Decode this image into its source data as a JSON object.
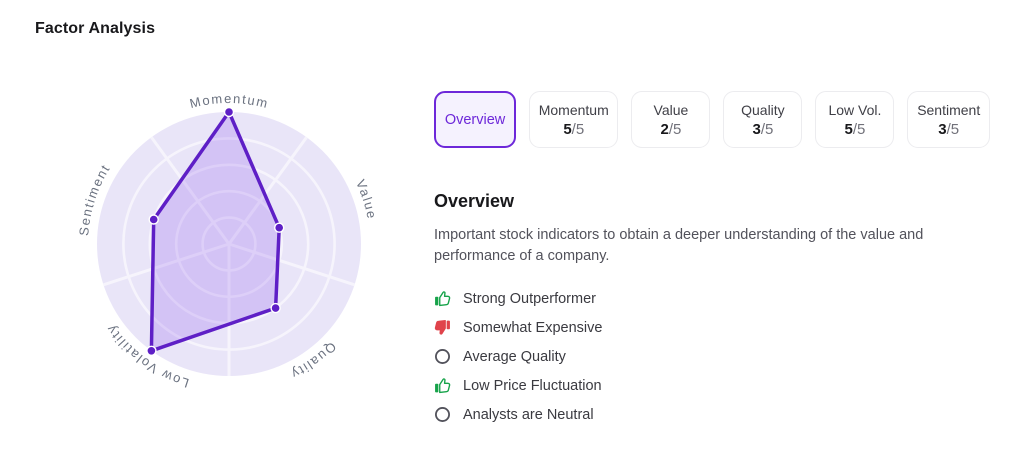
{
  "page_title": "Factor Analysis",
  "accent_color": "#6d28d9",
  "tabs": {
    "overview": {
      "label": "Overview"
    },
    "factors": [
      {
        "label": "Momentum",
        "score": "5",
        "denominator": "/5"
      },
      {
        "label": "Value",
        "score": "2",
        "denominator": "/5"
      },
      {
        "label": "Quality",
        "score": "3",
        "denominator": "/5"
      },
      {
        "label": "Low Vol.",
        "score": "5",
        "denominator": "/5"
      },
      {
        "label": "Sentiment",
        "score": "3",
        "denominator": "/5"
      }
    ]
  },
  "overview": {
    "heading": "Overview",
    "description": "Important stock indicators to obtain a deeper understanding of the value and performance of a company.",
    "indicators": [
      {
        "icon": "thumbs-up-icon",
        "sentiment": "positive",
        "label": "Strong Outperformer",
        "color": "#17a34a"
      },
      {
        "icon": "thumbs-down-icon",
        "sentiment": "negative",
        "label": "Somewhat Expensive",
        "color": "#e0434b"
      },
      {
        "icon": "neutral-circle-icon",
        "sentiment": "neutral",
        "label": "Average Quality",
        "color": "#52525b"
      },
      {
        "icon": "thumbs-up-icon",
        "sentiment": "positive",
        "label": "Low Price Fluctuation",
        "color": "#17a34a"
      },
      {
        "icon": "neutral-circle-icon",
        "sentiment": "neutral",
        "label": "Analysts are Neutral",
        "color": "#52525b"
      }
    ]
  },
  "chart_data": {
    "type": "radar",
    "title": "Factor Analysis radar",
    "categories": [
      "Momentum",
      "Value",
      "Quality",
      "Low Volatility",
      "Sentiment"
    ],
    "values": [
      5,
      2,
      3,
      5,
      3
    ],
    "scale_max": 5,
    "rings": 5,
    "grid": true,
    "legend_position": "none",
    "colors": {
      "disc": "#e9e5f8",
      "grid": "#f6f4fc",
      "stroke": "#5e1fc6",
      "fill": "rgba(124,58,237,0.2)",
      "label": "#6b7280"
    }
  }
}
